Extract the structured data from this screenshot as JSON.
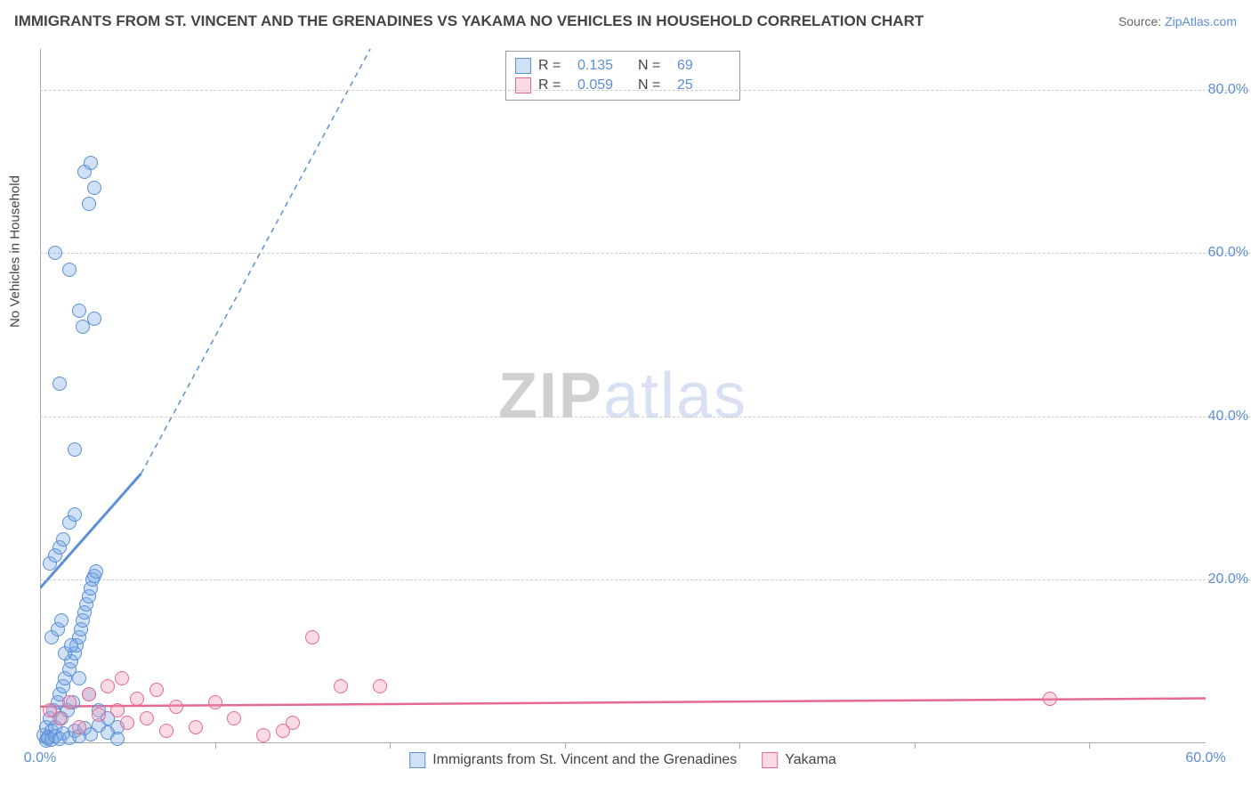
{
  "title": "IMMIGRANTS FROM ST. VINCENT AND THE GRENADINES VS YAKAMA NO VEHICLES IN HOUSEHOLD CORRELATION CHART",
  "source_label": "Source:",
  "source_link": "ZipAtlas.com",
  "y_axis_label": "No Vehicles in Household",
  "watermark": {
    "part1": "ZIP",
    "part2": "atlas"
  },
  "colors": {
    "series_a_fill": "rgba(120,170,230,0.35)",
    "series_a_stroke": "#5b8fd6",
    "series_b_fill": "rgba(240,150,180,0.35)",
    "series_b_stroke": "#e46a93",
    "tick_text": "#5b8fd6",
    "grid": "#cccccc",
    "axis": "#aaaaaa",
    "title": "#444444"
  },
  "chart": {
    "type": "scatter",
    "xlim": [
      0,
      60
    ],
    "ylim": [
      0,
      85
    ],
    "y_ticks": [
      20,
      40,
      60,
      80
    ],
    "y_tick_labels": [
      "20.0%",
      "40.0%",
      "60.0%",
      "80.0%"
    ],
    "x_ticks": [
      0,
      60
    ],
    "x_tick_labels": [
      "0.0%",
      "60.0%"
    ],
    "x_minor_ticks": [
      9,
      18,
      27,
      36,
      45,
      54
    ],
    "point_radius": 8
  },
  "series": [
    {
      "key": "a",
      "name": "Immigrants from St. Vincent and the Grenadines",
      "R": "0.135",
      "N": "69",
      "trend": {
        "x1": 0,
        "y1": 19,
        "x2": 5.2,
        "y2": 33,
        "dash_x2": 17,
        "dash_y2": 85
      },
      "points": [
        [
          0.2,
          1
        ],
        [
          0.3,
          2
        ],
        [
          0.4,
          0.5
        ],
        [
          0.5,
          3
        ],
        [
          0.6,
          1.5
        ],
        [
          0.7,
          4
        ],
        [
          0.8,
          2
        ],
        [
          0.9,
          5
        ],
        [
          1.0,
          6
        ],
        [
          1.1,
          3
        ],
        [
          1.2,
          7
        ],
        [
          1.3,
          8
        ],
        [
          1.4,
          4
        ],
        [
          1.5,
          9
        ],
        [
          1.6,
          10
        ],
        [
          1.7,
          5
        ],
        [
          1.8,
          11
        ],
        [
          1.9,
          12
        ],
        [
          2.0,
          13
        ],
        [
          2.1,
          14
        ],
        [
          2.2,
          15
        ],
        [
          2.3,
          16
        ],
        [
          2.4,
          17
        ],
        [
          2.5,
          18
        ],
        [
          2.6,
          19
        ],
        [
          2.7,
          20
        ],
        [
          2.8,
          20.5
        ],
        [
          2.9,
          21
        ],
        [
          0.5,
          22
        ],
        [
          0.8,
          23
        ],
        [
          1.0,
          24
        ],
        [
          1.2,
          25
        ],
        [
          1.5,
          27
        ],
        [
          1.8,
          28
        ],
        [
          0.6,
          13
        ],
        [
          0.9,
          14
        ],
        [
          1.1,
          15
        ],
        [
          1.3,
          11
        ],
        [
          1.6,
          12
        ],
        [
          2.0,
          8
        ],
        [
          2.5,
          6
        ],
        [
          3.0,
          4
        ],
        [
          3.5,
          3
        ],
        [
          4.0,
          2
        ],
        [
          1.8,
          36
        ],
        [
          1.0,
          44
        ],
        [
          2.2,
          51
        ],
        [
          2.8,
          52
        ],
        [
          2.0,
          53
        ],
        [
          1.5,
          58
        ],
        [
          0.8,
          60
        ],
        [
          2.5,
          66
        ],
        [
          2.8,
          68
        ],
        [
          2.3,
          70
        ],
        [
          2.6,
          71
        ],
        [
          0.3,
          0.3
        ],
        [
          0.4,
          0.8
        ],
        [
          0.6,
          0.4
        ],
        [
          0.8,
          0.9
        ],
        [
          1.0,
          0.5
        ],
        [
          1.2,
          1.2
        ],
        [
          1.5,
          0.7
        ],
        [
          1.8,
          1.5
        ],
        [
          2.0,
          0.9
        ],
        [
          2.3,
          1.8
        ],
        [
          2.6,
          1.1
        ],
        [
          3.0,
          2.2
        ],
        [
          3.5,
          1.3
        ],
        [
          4.0,
          0.6
        ]
      ]
    },
    {
      "key": "b",
      "name": "Yakama",
      "R": "0.059",
      "N": "25",
      "trend": {
        "x1": 0,
        "y1": 4.5,
        "x2": 60,
        "y2": 5.5
      },
      "points": [
        [
          0.5,
          4
        ],
        [
          1.0,
          3
        ],
        [
          1.5,
          5
        ],
        [
          2.0,
          2
        ],
        [
          2.5,
          6
        ],
        [
          3.0,
          3.5
        ],
        [
          3.5,
          7
        ],
        [
          4.0,
          4
        ],
        [
          4.5,
          2.5
        ],
        [
          5.0,
          5.5
        ],
        [
          5.5,
          3
        ],
        [
          6.0,
          6.5
        ],
        [
          6.5,
          1.5
        ],
        [
          7.0,
          4.5
        ],
        [
          8.0,
          2
        ],
        [
          9.0,
          5
        ],
        [
          10.0,
          3
        ],
        [
          11.5,
          1
        ],
        [
          13.0,
          2.5
        ],
        [
          14.0,
          13
        ],
        [
          17.5,
          7
        ],
        [
          15.5,
          7
        ],
        [
          12.5,
          1.5
        ],
        [
          52.0,
          5.5
        ],
        [
          4.2,
          8
        ]
      ]
    }
  ],
  "legend_top": {
    "R_label": "R  =",
    "N_label": "N  ="
  }
}
